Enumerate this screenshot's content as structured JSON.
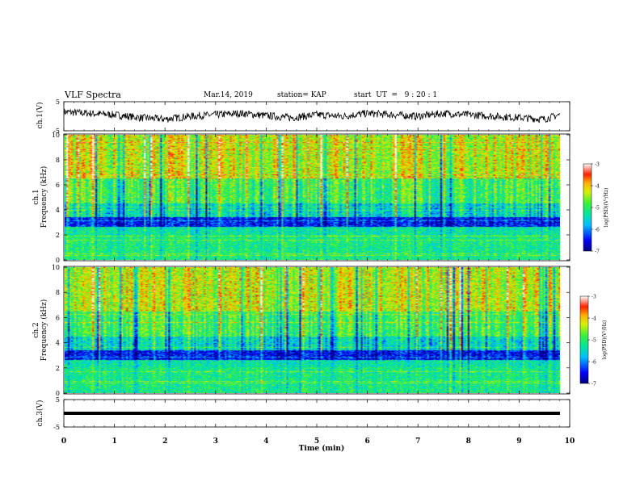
{
  "header": {
    "title": "VLF Spectra",
    "date": "Mar.14, 2019",
    "station": "station= KAP",
    "start": "start  UT  =   9 : 20 : 1"
  },
  "colors": {
    "colormap": [
      "#00007f",
      "#0000ff",
      "#00bfff",
      "#00e5a0",
      "#3cf03c",
      "#d8f000",
      "#ffb000",
      "#ff2000",
      "#ffffff"
    ]
  },
  "chart_data": [
    {
      "type": "line",
      "panel": "ch1-waveform",
      "ylabel": "ch.1(V)",
      "ylim": [
        -5,
        5
      ],
      "yticks": [
        "5",
        "-5"
      ],
      "xlim": [
        0,
        10
      ],
      "description_of_values": "noisy voltage trace",
      "x": [
        0,
        0.5,
        1,
        1.5,
        2,
        2.5,
        3,
        3.5,
        4,
        4.5,
        5,
        5.5,
        6,
        6.5,
        7,
        7.5,
        8,
        8.5,
        9,
        9.5,
        9.8
      ],
      "values": [
        1.5,
        1.0,
        0.5,
        -0.5,
        -1.0,
        0,
        0.5,
        1.0,
        0.2,
        -0.5,
        0.5,
        0,
        1.0,
        0.5,
        0,
        1.0,
        0.5,
        0,
        -0.5,
        -1.0,
        0.5
      ]
    },
    {
      "type": "heatmap",
      "panel": "ch1-spectrogram",
      "ylabel_top": "ch.1",
      "ylabel": "Frequency (kHz)",
      "ylim": [
        0,
        10
      ],
      "yticks": [
        "0",
        "2",
        "4",
        "6",
        "8",
        "10"
      ],
      "xlim": [
        0,
        10
      ],
      "colorbar": {
        "label": "log(PSD)(V²/Hz)",
        "range": [
          -7,
          -3
        ],
        "ticks": [
          "-3",
          "-4",
          "-5",
          "-6",
          "-7"
        ]
      }
    },
    {
      "type": "heatmap",
      "panel": "ch2-spectrogram",
      "ylabel_top": "ch.2",
      "ylabel": "Frequency (kHz)",
      "ylim": [
        0,
        10
      ],
      "yticks": [
        "0",
        "2",
        "4",
        "6",
        "8",
        "10"
      ],
      "xlim": [
        0,
        10
      ],
      "colorbar": {
        "label": "log(PSD)(V²/Hz)",
        "range": [
          -7,
          -3
        ],
        "ticks": [
          "-3",
          "-4",
          "-5",
          "-6",
          "-7"
        ]
      }
    },
    {
      "type": "line",
      "panel": "ch3-waveform",
      "ylabel": "ch.3(V)",
      "ylim": [
        -5,
        5
      ],
      "yticks": [
        "5",
        "-5"
      ],
      "xlim": [
        0,
        10
      ],
      "x": [
        0,
        9.8
      ],
      "values": [
        0,
        0
      ]
    }
  ],
  "xaxis": {
    "label": "Time (min)",
    "ticks": [
      "0",
      "1",
      "2",
      "3",
      "4",
      "5",
      "6",
      "7",
      "8",
      "9",
      "10"
    ]
  }
}
